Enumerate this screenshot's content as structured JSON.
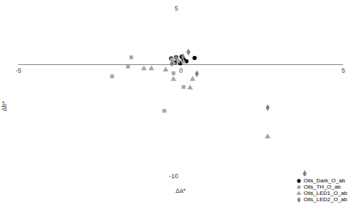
{
  "chart_data": {
    "type": "scatter",
    "x_label": "Δa*",
    "y_label": "Δb*",
    "xlim": [
      -5,
      5
    ],
    "ylim": [
      -10,
      5
    ],
    "xticks": [
      -5,
      0,
      5
    ],
    "yticks": [
      -10,
      5
    ],
    "grid": false,
    "legend": "bottom-right",
    "series": [
      {
        "name": "Oils_Dark_O_ab",
        "color": "#000000",
        "marker": "circle",
        "x": [
          -0.3,
          -0.15,
          0.02,
          0.08,
          0.17,
          0.42,
          -0.08,
          -0.19,
          -0.02
        ],
        "y": [
          0.55,
          0.65,
          0.7,
          0.47,
          0.3,
          0.6,
          0.3,
          0.18,
          0.12
        ]
      },
      {
        "name": "Oils_TH_O_ab",
        "color": "#a6a6a6",
        "marker": "square",
        "x": [
          -1.53,
          -1.63,
          -2.12,
          -0.23,
          0.08,
          -0.51,
          -0.08,
          -0.28
        ],
        "y": [
          0.65,
          -0.18,
          -1.05,
          -0.77,
          -2.0,
          -4.14,
          0.3,
          0.47
        ]
      },
      {
        "name": "Oils_LED1_O_ab",
        "color": "#a6a6a6",
        "marker": "triangle",
        "x": [
          -1.14,
          -0.91,
          -0.47,
          -0.23,
          0.28,
          0.36,
          2.67,
          -0.23,
          0.08
        ],
        "y": [
          -0.36,
          -0.36,
          -0.47,
          -1.3,
          -2.07,
          -1.3,
          -6.45,
          0.18,
          0.24
        ]
      },
      {
        "name": "Oils_LED2_O_ab",
        "color": "#808080",
        "marker": "diamond",
        "x": [
          0.23,
          0.49,
          2.67,
          3.81,
          -0.15,
          0.06,
          -0.28
        ],
        "y": [
          1.12,
          -0.82,
          -3.85,
          -9.76,
          0.6,
          0.7,
          0.1
        ]
      }
    ]
  }
}
